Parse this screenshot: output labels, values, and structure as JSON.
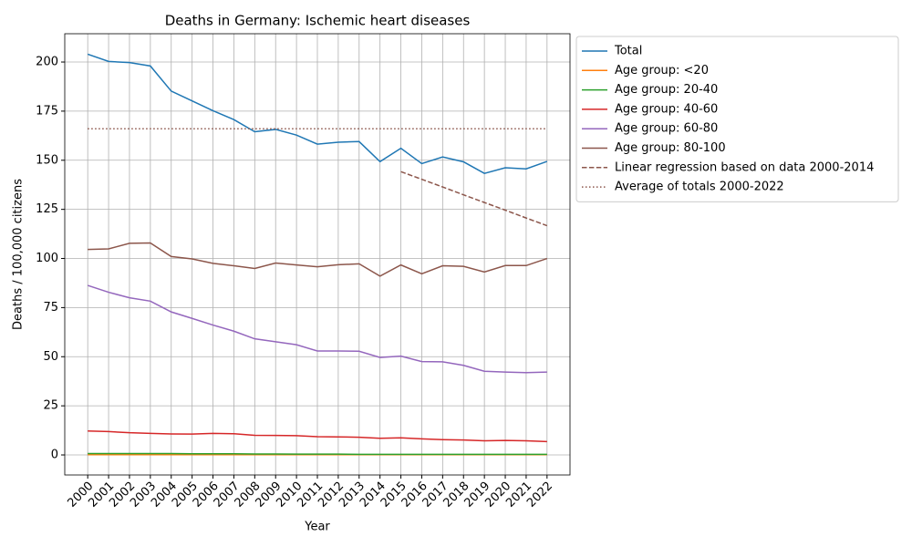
{
  "chart_data": {
    "type": "line",
    "title": "Deaths in Germany: Ischemic heart diseases",
    "xlabel": "Year",
    "ylabel": "Deaths / 100,000 citizens",
    "x": [
      2000,
      2001,
      2002,
      2003,
      2004,
      2005,
      2006,
      2007,
      2008,
      2009,
      2010,
      2011,
      2012,
      2013,
      2014,
      2015,
      2016,
      2017,
      2018,
      2019,
      2020,
      2021,
      2022
    ],
    "xlim": [
      1998.9,
      2023.1
    ],
    "xticks": [
      2000,
      2001,
      2002,
      2003,
      2004,
      2005,
      2006,
      2007,
      2008,
      2009,
      2010,
      2011,
      2012,
      2013,
      2014,
      2015,
      2016,
      2017,
      2018,
      2019,
      2020,
      2021,
      2022
    ],
    "ylim": [
      -10.2,
      214.4
    ],
    "yticks": [
      0,
      25,
      50,
      75,
      100,
      125,
      150,
      175,
      200
    ],
    "grid": true,
    "legend": "outside upper right",
    "series": [
      {
        "name": "Total",
        "color": "#1f77b4",
        "linestyle": "solid",
        "values": [
          204,
          200.3,
          199.7,
          198,
          185.2,
          180.2,
          175.2,
          170.7,
          164.5,
          165.7,
          162.8,
          158.2,
          159.2,
          159.5,
          149.3,
          156.1,
          148.3,
          151.7,
          149.2,
          143.3,
          146.2,
          145.6,
          149.4
        ]
      },
      {
        "name": "Age group: <20",
        "color": "#ff7f0e",
        "linestyle": "solid",
        "values": [
          0.1,
          0.1,
          0.1,
          0.1,
          0.1,
          0.1,
          0.1,
          0.1,
          0.1,
          0.1,
          0.1,
          0.1,
          0.1,
          0.1,
          0.1,
          0.1,
          0.1,
          0.1,
          0.1,
          0.1,
          0.1,
          0.1,
          0.1
        ]
      },
      {
        "name": "Age group: 20-40",
        "color": "#2ca02c",
        "linestyle": "solid",
        "values": [
          0.7,
          0.7,
          0.7,
          0.7,
          0.7,
          0.6,
          0.6,
          0.6,
          0.5,
          0.5,
          0.4,
          0.4,
          0.4,
          0.3,
          0.3,
          0.3,
          0.3,
          0.3,
          0.3,
          0.3,
          0.3,
          0.3,
          0.3
        ]
      },
      {
        "name": "Age group: 40-60",
        "color": "#d62728",
        "linestyle": "solid",
        "values": [
          12.2,
          11.9,
          11.3,
          11.0,
          10.7,
          10.6,
          11.0,
          10.8,
          10.0,
          9.9,
          9.8,
          9.3,
          9.2,
          9.0,
          8.5,
          8.7,
          8.2,
          7.8,
          7.6,
          7.2,
          7.4,
          7.2,
          6.8
        ]
      },
      {
        "name": "Age group: 60-80",
        "color": "#9467bd",
        "linestyle": "solid",
        "values": [
          86.3,
          82.8,
          80.0,
          78.3,
          72.8,
          69.5,
          66.1,
          63.0,
          59.1,
          57.6,
          56.1,
          52.9,
          52.9,
          52.8,
          49.6,
          50.3,
          47.5,
          47.4,
          45.6,
          42.6,
          42.2,
          41.9,
          42.2
        ]
      },
      {
        "name": "Age group: 80-100",
        "color": "#8c564b",
        "linestyle": "solid",
        "values": [
          104.6,
          104.9,
          107.7,
          107.9,
          101.0,
          99.8,
          97.5,
          96.3,
          94.9,
          97.7,
          96.7,
          95.8,
          96.8,
          97.3,
          91.0,
          96.7,
          92.2,
          96.3,
          96.0,
          93.1,
          96.4,
          96.4,
          100.0
        ]
      },
      {
        "name": "Linear regression based on data 2000-2014",
        "color": "#8c564b",
        "linestyle": "dashed",
        "values": [
          null,
          null,
          null,
          null,
          null,
          null,
          null,
          null,
          null,
          null,
          null,
          null,
          null,
          null,
          null,
          144.2,
          140.3,
          136.4,
          132.4,
          128.5,
          124.6,
          120.6,
          116.7
        ]
      },
      {
        "name": "Average of totals 2000-2022",
        "color": "#8c564b",
        "linestyle": "dotted",
        "values": [
          166,
          166,
          166,
          166,
          166,
          166,
          166,
          166,
          166,
          166,
          166,
          166,
          166,
          166,
          166,
          166,
          166,
          166,
          166,
          166,
          166,
          166,
          166
        ]
      }
    ]
  }
}
